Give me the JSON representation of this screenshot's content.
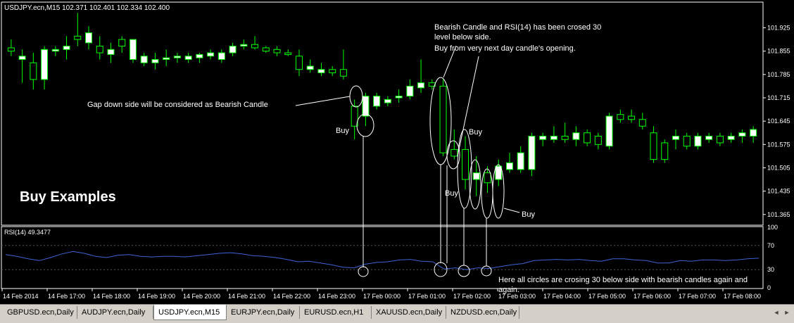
{
  "window": {
    "symbol_header": "USDJPY.ecn,M15  102.371 102.401 102.334 102.400"
  },
  "colors": {
    "background": "#000000",
    "grid": "#ffffff",
    "bull_candle": "#ffffff",
    "bear_candle": "#000000",
    "candle_outline": "#00ff00",
    "rsi_line": "#3f63d6"
  },
  "annotations": {
    "title": "Buy Examples",
    "note_rsi_line1": "Bearish Candle and RSI(14) has been crosed 30",
    "note_rsi_line2": "level below side.",
    "note_rsi_line3": "Buy from very next day candle's opening.",
    "note_gap": "Gap down side will be considered as Bearish Candle",
    "note_bottom_line1": "Here all circles are crosing 30 below side with bearish candles again and",
    "note_bottom_line2": "again.",
    "buy_labels": [
      "Buy",
      "Buy",
      "Buy",
      "Buy"
    ]
  },
  "indicator": {
    "label": "RSI(14) 49.3477"
  },
  "chart_data": [
    {
      "type": "candlestick",
      "title": "USDJPY.ecn,M15",
      "ylim": [
        101.335,
        102.0
      ],
      "y_ticks": [
        "101.925",
        "101.855",
        "101.785",
        "101.715",
        "101.645",
        "101.575",
        "101.505",
        "101.435",
        "101.365"
      ],
      "x_ticks": [
        "14 Feb 2014",
        "14 Feb 17:00",
        "14 Feb 18:00",
        "14 Feb 19:00",
        "14 Feb 20:00",
        "14 Feb 21:00",
        "14 Feb 22:00",
        "14 Feb 23:00",
        "17 Feb 00:00",
        "17 Feb 01:00",
        "17 Feb 02:00",
        "17 Feb 03:00",
        "17 Feb 04:00",
        "17 Feb 05:00",
        "17 Feb 06:00",
        "17 Feb 07:00",
        "17 Feb 08:00"
      ],
      "candles": [
        {
          "o": 101.865,
          "h": 101.89,
          "l": 101.84,
          "c": 101.855
        },
        {
          "o": 101.83,
          "h": 101.86,
          "l": 101.76,
          "c": 101.84
        },
        {
          "o": 101.82,
          "h": 101.85,
          "l": 101.74,
          "c": 101.77
        },
        {
          "o": 101.77,
          "h": 101.87,
          "l": 101.74,
          "c": 101.86
        },
        {
          "o": 101.855,
          "h": 101.87,
          "l": 101.84,
          "c": 101.86
        },
        {
          "o": 101.86,
          "h": 101.9,
          "l": 101.83,
          "c": 101.87
        },
        {
          "o": 101.9,
          "h": 101.97,
          "l": 101.87,
          "c": 101.89
        },
        {
          "o": 101.88,
          "h": 101.93,
          "l": 101.86,
          "c": 101.91
        },
        {
          "o": 101.87,
          "h": 101.9,
          "l": 101.83,
          "c": 101.85
        },
        {
          "o": 101.845,
          "h": 101.88,
          "l": 101.82,
          "c": 101.86
        },
        {
          "o": 101.89,
          "h": 101.9,
          "l": 101.85,
          "c": 101.87
        },
        {
          "o": 101.83,
          "h": 101.89,
          "l": 101.82,
          "c": 101.89
        },
        {
          "o": 101.82,
          "h": 101.85,
          "l": 101.81,
          "c": 101.84
        },
        {
          "o": 101.82,
          "h": 101.85,
          "l": 101.8,
          "c": 101.83
        },
        {
          "o": 101.83,
          "h": 101.86,
          "l": 101.81,
          "c": 101.835
        },
        {
          "o": 101.835,
          "h": 101.85,
          "l": 101.82,
          "c": 101.84
        },
        {
          "o": 101.83,
          "h": 101.85,
          "l": 101.82,
          "c": 101.84
        },
        {
          "o": 101.835,
          "h": 101.85,
          "l": 101.82,
          "c": 101.845
        },
        {
          "o": 101.84,
          "h": 101.86,
          "l": 101.83,
          "c": 101.85
        },
        {
          "o": 101.83,
          "h": 101.86,
          "l": 101.82,
          "c": 101.85
        },
        {
          "o": 101.85,
          "h": 101.88,
          "l": 101.84,
          "c": 101.87
        },
        {
          "o": 101.87,
          "h": 101.89,
          "l": 101.86,
          "c": 101.875
        },
        {
          "o": 101.875,
          "h": 101.9,
          "l": 101.86,
          "c": 101.865
        },
        {
          "o": 101.865,
          "h": 101.87,
          "l": 101.85,
          "c": 101.855
        },
        {
          "o": 101.86,
          "h": 101.87,
          "l": 101.84,
          "c": 101.85
        },
        {
          "o": 101.85,
          "h": 101.86,
          "l": 101.84,
          "c": 101.845
        },
        {
          "o": 101.84,
          "h": 101.86,
          "l": 101.78,
          "c": 101.8
        },
        {
          "o": 101.8,
          "h": 101.83,
          "l": 101.79,
          "c": 101.81
        },
        {
          "o": 101.79,
          "h": 101.82,
          "l": 101.78,
          "c": 101.8
        },
        {
          "o": 101.8,
          "h": 101.81,
          "l": 101.78,
          "c": 101.79
        },
        {
          "o": 101.8,
          "h": 101.86,
          "l": 101.77,
          "c": 101.78
        },
        {
          "o": 101.69,
          "h": 101.71,
          "l": 101.59,
          "c": 101.63
        },
        {
          "o": 101.66,
          "h": 101.73,
          "l": 101.63,
          "c": 101.72
        },
        {
          "o": 101.69,
          "h": 101.73,
          "l": 101.68,
          "c": 101.72
        },
        {
          "o": 101.7,
          "h": 101.72,
          "l": 101.69,
          "c": 101.71
        },
        {
          "o": 101.715,
          "h": 101.74,
          "l": 101.7,
          "c": 101.72
        },
        {
          "o": 101.72,
          "h": 101.77,
          "l": 101.71,
          "c": 101.75
        },
        {
          "o": 101.745,
          "h": 101.83,
          "l": 101.73,
          "c": 101.76
        },
        {
          "o": 101.76,
          "h": 101.77,
          "l": 101.74,
          "c": 101.75
        },
        {
          "o": 101.75,
          "h": 101.77,
          "l": 101.54,
          "c": 101.55
        },
        {
          "o": 101.56,
          "h": 101.62,
          "l": 101.53,
          "c": 101.54
        },
        {
          "o": 101.56,
          "h": 101.6,
          "l": 101.44,
          "c": 101.47
        },
        {
          "o": 101.47,
          "h": 101.54,
          "l": 101.42,
          "c": 101.49
        },
        {
          "o": 101.49,
          "h": 101.51,
          "l": 101.43,
          "c": 101.46
        },
        {
          "o": 101.47,
          "h": 101.53,
          "l": 101.45,
          "c": 101.51
        },
        {
          "o": 101.5,
          "h": 101.55,
          "l": 101.49,
          "c": 101.52
        },
        {
          "o": 101.5,
          "h": 101.57,
          "l": 101.49,
          "c": 101.55
        },
        {
          "o": 101.5,
          "h": 101.61,
          "l": 101.48,
          "c": 101.6
        },
        {
          "o": 101.59,
          "h": 101.61,
          "l": 101.57,
          "c": 101.6
        },
        {
          "o": 101.59,
          "h": 101.63,
          "l": 101.58,
          "c": 101.6
        },
        {
          "o": 101.6,
          "h": 101.64,
          "l": 101.58,
          "c": 101.59
        },
        {
          "o": 101.59,
          "h": 101.63,
          "l": 101.57,
          "c": 101.61
        },
        {
          "o": 101.61,
          "h": 101.62,
          "l": 101.57,
          "c": 101.58
        },
        {
          "o": 101.6,
          "h": 101.61,
          "l": 101.56,
          "c": 101.575
        },
        {
          "o": 101.57,
          "h": 101.67,
          "l": 101.56,
          "c": 101.66
        },
        {
          "o": 101.665,
          "h": 101.68,
          "l": 101.64,
          "c": 101.65
        },
        {
          "o": 101.66,
          "h": 101.68,
          "l": 101.64,
          "c": 101.65
        },
        {
          "o": 101.65,
          "h": 101.67,
          "l": 101.62,
          "c": 101.63
        },
        {
          "o": 101.61,
          "h": 101.63,
          "l": 101.52,
          "c": 101.53
        },
        {
          "o": 101.58,
          "h": 101.59,
          "l": 101.52,
          "c": 101.53
        },
        {
          "o": 101.59,
          "h": 101.62,
          "l": 101.56,
          "c": 101.6
        },
        {
          "o": 101.6,
          "h": 101.61,
          "l": 101.56,
          "c": 101.57
        },
        {
          "o": 101.57,
          "h": 101.61,
          "l": 101.56,
          "c": 101.6
        },
        {
          "o": 101.59,
          "h": 101.61,
          "l": 101.58,
          "c": 101.6
        },
        {
          "o": 101.6,
          "h": 101.61,
          "l": 101.57,
          "c": 101.58
        },
        {
          "o": 101.59,
          "h": 101.61,
          "l": 101.58,
          "c": 101.6
        },
        {
          "o": 101.6,
          "h": 101.62,
          "l": 101.58,
          "c": 101.61
        },
        {
          "o": 101.6,
          "h": 101.63,
          "l": 101.58,
          "c": 101.62
        }
      ]
    },
    {
      "type": "line",
      "title": "RSI(14) 49.3477",
      "ylim": [
        0,
        100
      ],
      "y_ticks": [
        "100",
        "70",
        "30",
        "0"
      ],
      "series": [
        {
          "name": "RSI(14)",
          "values": [
            55,
            52,
            48,
            45,
            50,
            56,
            60,
            57,
            52,
            50,
            54,
            55,
            52,
            51,
            52,
            52,
            51,
            53,
            55,
            57,
            58,
            56,
            53,
            52,
            50,
            47,
            43,
            44,
            41,
            38,
            34,
            33,
            39,
            42,
            43,
            46,
            47,
            44,
            43,
            31,
            33,
            30,
            33,
            32,
            35,
            38,
            40,
            45,
            46,
            47,
            46,
            47,
            45,
            44,
            48,
            48,
            46,
            45,
            41,
            41,
            45,
            44,
            46,
            46,
            45,
            46,
            48,
            49
          ]
        }
      ]
    }
  ],
  "tabs": [
    {
      "label": "GBPUSD.ecn,Daily"
    },
    {
      "label": "AUDJPY.ecn,Daily"
    },
    {
      "label": "USDJPY.ecn,M15"
    },
    {
      "label": "EURJPY.ecn,Daily"
    },
    {
      "label": "EURUSD.ecn,H1"
    },
    {
      "label": "XAUUSD.ecn,Daily"
    },
    {
      "label": "NZDUSD.ecn,Daily"
    }
  ],
  "tab_nav": {
    "prev_icon": "◄",
    "next_icon": "►"
  }
}
